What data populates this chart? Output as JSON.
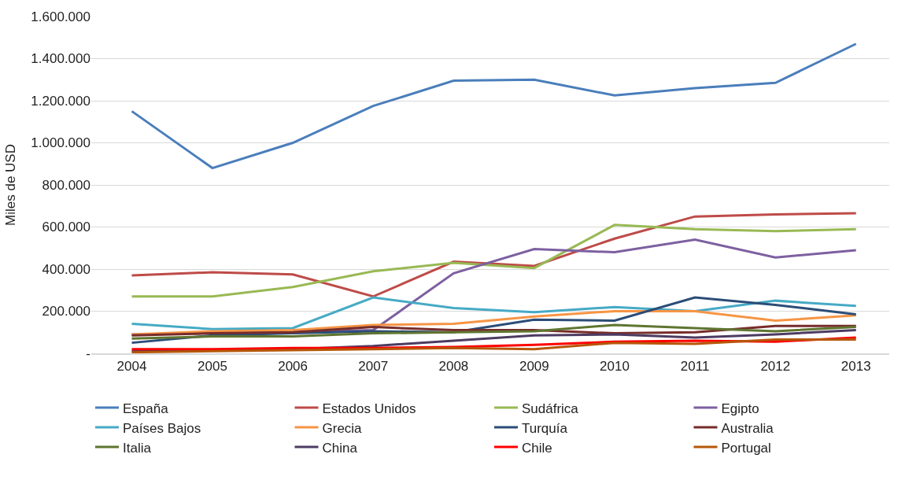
{
  "chart_data": {
    "type": "line",
    "ylabel": "Miles de USD",
    "x": [
      "2004",
      "2005",
      "2006",
      "2007",
      "2008",
      "2009",
      "2010",
      "2011",
      "2012",
      "2013"
    ],
    "xlim": [
      "2003-07",
      "2013-06"
    ],
    "xticks": [
      {
        "value": "2004",
        "label": "2004"
      },
      {
        "value": "2005",
        "label": "2005"
      },
      {
        "value": "2006",
        "label": "2006"
      },
      {
        "value": "2007",
        "label": "2007"
      },
      {
        "value": "2008",
        "label": "2008"
      },
      {
        "value": "2009",
        "label": "2009"
      },
      {
        "value": "2010",
        "label": "2010"
      },
      {
        "value": "2011",
        "label": "2011"
      },
      {
        "value": "2012",
        "label": "2012"
      },
      {
        "value": "2013",
        "label": "2013"
      }
    ],
    "ylim": [
      0,
      1600000
    ],
    "yticks": [
      {
        "value": 0,
        "label": "-"
      },
      {
        "value": 200000,
        "label": "200.000"
      },
      {
        "value": 400000,
        "label": "400.000"
      },
      {
        "value": 600000,
        "label": "600.000"
      },
      {
        "value": 800000,
        "label": "800.000"
      },
      {
        "value": 1000000,
        "label": "1.000.000"
      },
      {
        "value": 1200000,
        "label": "1.200.000"
      },
      {
        "value": 1400000,
        "label": "1.400.000"
      },
      {
        "value": 1600000,
        "label": "1.600.000"
      }
    ],
    "grid": "y",
    "legend": "bottom",
    "marker": "none",
    "line_style": "solid",
    "series": [
      {
        "name": "España",
        "color": "#4a7ebb",
        "values": [
          1150000,
          880000,
          1000000,
          1175000,
          1295000,
          1300000,
          1225000,
          1260000,
          1285000,
          1470000
        ]
      },
      {
        "name": "Estados Unidos",
        "color": "#be4b48",
        "values": [
          370000,
          385000,
          375000,
          270000,
          435000,
          415000,
          545000,
          650000,
          660000,
          665000
        ]
      },
      {
        "name": "Sudáfrica",
        "color": "#98b954",
        "values": [
          270000,
          270000,
          315000,
          390000,
          430000,
          405000,
          610000,
          590000,
          580000,
          590000
        ]
      },
      {
        "name": "Egipto",
        "color": "#7d60a0",
        "values": [
          90000,
          95000,
          100000,
          110000,
          380000,
          495000,
          480000,
          540000,
          455000,
          490000
        ]
      },
      {
        "name": "Países Bajos",
        "color": "#46aac5",
        "values": [
          140000,
          115000,
          120000,
          265000,
          215000,
          195000,
          220000,
          200000,
          250000,
          225000
        ]
      },
      {
        "name": "Grecia",
        "color": "#f69545",
        "values": [
          90000,
          105000,
          110000,
          135000,
          140000,
          175000,
          200000,
          200000,
          155000,
          180000
        ]
      },
      {
        "name": "Turquía",
        "color": "#2b4d77",
        "values": [
          50000,
          85000,
          95000,
          105000,
          100000,
          160000,
          155000,
          265000,
          230000,
          185000
        ]
      },
      {
        "name": "Australia",
        "color": "#772c2a",
        "values": [
          85000,
          95000,
          100000,
          125000,
          110000,
          110000,
          95000,
          100000,
          130000,
          130000
        ]
      },
      {
        "name": "Italia",
        "color": "#5f7530",
        "values": [
          70000,
          80000,
          80000,
          95000,
          100000,
          105000,
          135000,
          120000,
          105000,
          125000
        ]
      },
      {
        "name": "China",
        "color": "#4d3b62",
        "values": [
          10000,
          15000,
          20000,
          35000,
          60000,
          85000,
          90000,
          75000,
          90000,
          110000
        ]
      },
      {
        "name": "Chile",
        "color": "#ff0000",
        "values": [
          20000,
          20000,
          25000,
          25000,
          30000,
          40000,
          55000,
          60000,
          55000,
          75000
        ]
      },
      {
        "name": "Portugal",
        "color": "#b65708",
        "values": [
          5000,
          10000,
          15000,
          20000,
          25000,
          20000,
          50000,
          45000,
          65000,
          65000
        ]
      }
    ]
  }
}
